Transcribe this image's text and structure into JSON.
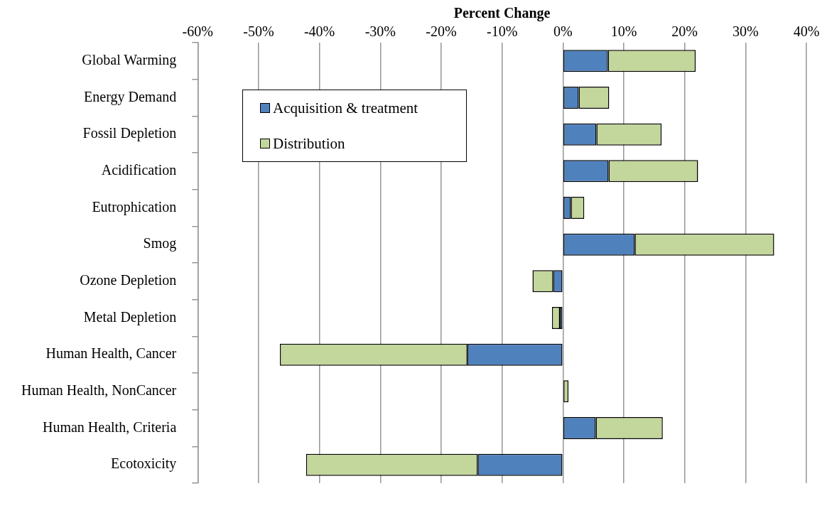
{
  "chart_data": {
    "type": "bar",
    "orientation": "horizontal",
    "stacked": true,
    "xlabel": "Percent Change",
    "categories": [
      "Global Warming",
      "Energy Demand",
      "Fossil Depletion",
      "Acidification",
      "Eutrophication",
      "Smog",
      "Ozone Depletion",
      "Metal Depletion",
      "Human Health, Cancer",
      "Human Health, NonCancer",
      "Human Health, Criteria",
      "Ecotoxicity"
    ],
    "series": [
      {
        "name": "Acquisition & treatment",
        "color": "#4f81bd",
        "values": [
          7.4,
          2.6,
          5.5,
          7.5,
          1.3,
          11.8,
          -1.6,
          -0.5,
          -15.7,
          0.1,
          5.4,
          -14.0
        ]
      },
      {
        "name": "Distribution",
        "color": "#c3d69b",
        "values": [
          14.4,
          5.0,
          10.7,
          14.7,
          2.2,
          22.9,
          -3.4,
          -1.3,
          -30.8,
          0.8,
          11.0,
          -28.2
        ]
      }
    ],
    "xlim": [
      -60,
      40
    ],
    "xticks": [
      {
        "value": -60,
        "label": "-60%"
      },
      {
        "value": -50,
        "label": "-50%"
      },
      {
        "value": -40,
        "label": "-40%"
      },
      {
        "value": -30,
        "label": "-30%"
      },
      {
        "value": -20,
        "label": "-20%"
      },
      {
        "value": -10,
        "label": "-10%"
      },
      {
        "value": 0,
        "label": "0%"
      },
      {
        "value": 10,
        "label": "10%"
      },
      {
        "value": 20,
        "label": "20%"
      },
      {
        "value": 30,
        "label": "30%"
      },
      {
        "value": 40,
        "label": "40%"
      }
    ],
    "grid": "x",
    "legend": "top left"
  }
}
